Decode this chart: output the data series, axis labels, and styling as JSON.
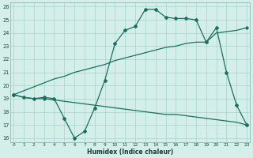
{
  "xlabel": "Humidex (Indice chaleur)",
  "x": [
    0,
    1,
    2,
    3,
    4,
    5,
    6,
    7,
    8,
    9,
    10,
    11,
    12,
    13,
    14,
    15,
    16,
    17,
    18,
    19,
    20,
    21,
    22,
    23
  ],
  "line1": [
    19.3,
    19.1,
    19.0,
    19.1,
    19.0,
    17.5,
    16.0,
    16.5,
    18.3,
    20.4,
    23.2,
    24.2,
    24.5,
    25.8,
    25.8,
    25.2,
    25.1,
    25.1,
    25.0,
    23.3,
    24.4,
    21.0,
    18.5,
    17.0
  ],
  "line2": [
    19.3,
    19.1,
    19.0,
    19.0,
    18.9,
    18.8,
    18.7,
    18.6,
    18.5,
    18.4,
    18.3,
    18.2,
    18.1,
    18.0,
    17.9,
    17.8,
    17.8,
    17.7,
    17.6,
    17.5,
    17.4,
    17.3,
    17.2,
    17.0
  ],
  "line3": [
    19.3,
    19.6,
    19.9,
    20.2,
    20.5,
    20.7,
    21.0,
    21.2,
    21.4,
    21.6,
    21.9,
    22.1,
    22.3,
    22.5,
    22.7,
    22.9,
    23.0,
    23.2,
    23.3,
    23.3,
    24.0,
    24.1,
    24.2,
    24.4
  ],
  "ylim": [
    16,
    26
  ],
  "xlim": [
    0,
    23
  ],
  "bg_color": "#d4eeea",
  "grid_color": "#a8d4cc",
  "line_color": "#1a7060",
  "yticks": [
    16,
    17,
    18,
    19,
    20,
    21,
    22,
    23,
    24,
    25,
    26
  ],
  "xticks": [
    0,
    1,
    2,
    3,
    4,
    5,
    6,
    7,
    8,
    9,
    10,
    11,
    12,
    13,
    14,
    15,
    16,
    17,
    18,
    19,
    20,
    21,
    22,
    23
  ],
  "marker1_x": [
    0,
    1,
    2,
    3,
    4,
    5,
    6,
    7,
    8,
    9,
    10,
    11,
    12,
    13,
    14,
    15,
    16,
    17,
    18,
    19,
    20,
    21,
    22,
    23
  ],
  "marker1_y": [
    19.3,
    19.1,
    19.0,
    19.1,
    19.0,
    17.5,
    16.0,
    16.5,
    18.3,
    20.4,
    23.2,
    24.2,
    24.5,
    25.8,
    25.8,
    25.2,
    25.1,
    25.1,
    25.0,
    23.3,
    24.4,
    21.0,
    18.5,
    17.0
  ]
}
